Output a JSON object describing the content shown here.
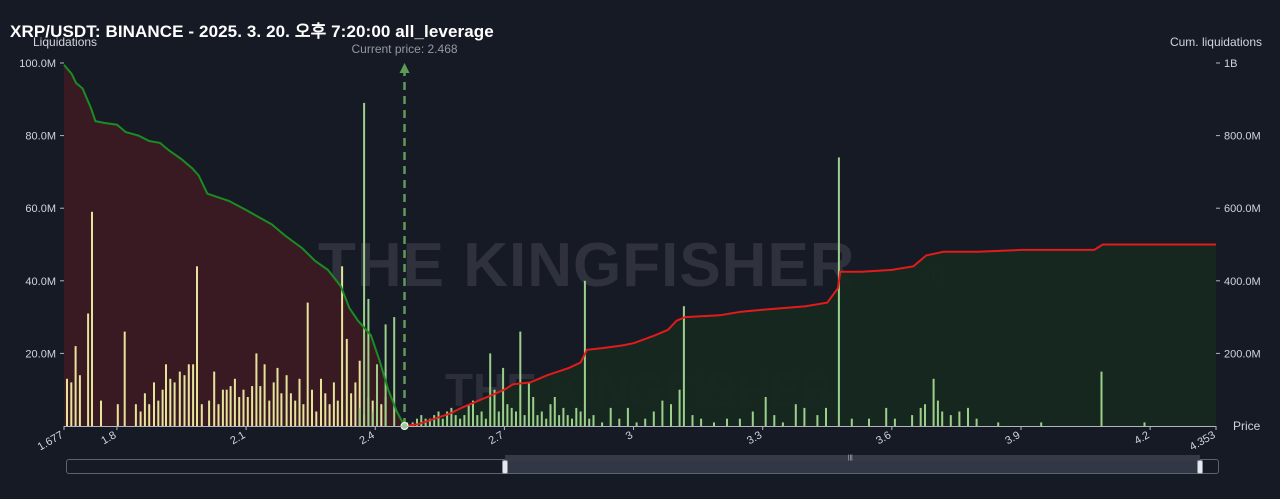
{
  "title": "XRP/USDT: BINANCE - 2025. 3. 20. 오후 7:20:00 all_leverage",
  "colors": {
    "background": "#161a25",
    "grid": "#2a2e39",
    "long_bars": "#e6e39a",
    "short_bars": "#9ccf8a",
    "cum_left_line": "#1b8c22",
    "cum_left_fill": "#3b1a22",
    "cum_right_line": "#e21b1b",
    "cum_right_fill": "#16281f",
    "current_price_line": "#5e9a58",
    "watermark": "#2f323c"
  },
  "watermark": {
    "main_text": "THE KINGFISHER",
    "suffix": ".io"
  },
  "chart_data": {
    "type": "bar",
    "title": "XRP/USDT: BINANCE - 2025. 3. 20. 오후 7:20:00 all_leverage",
    "xlabel": "Price",
    "ylabel": "Liquidations",
    "y2label": "Cum. liquidations",
    "current_price_label": "Current price: 2.468",
    "current_price": 2.468,
    "xlim": [
      1.677,
      4.353
    ],
    "ylim": [
      0,
      100
    ],
    "y2lim": [
      0,
      1000
    ],
    "x_ticks": [
      {
        "value": 1.677,
        "label": "1.677"
      },
      {
        "value": 1.8,
        "label": "1.8"
      },
      {
        "value": 2.1,
        "label": "2.1"
      },
      {
        "value": 2.4,
        "label": "2.4"
      },
      {
        "value": 2.7,
        "label": "2.7"
      },
      {
        "value": 3.0,
        "label": "3"
      },
      {
        "value": 3.3,
        "label": "3.3"
      },
      {
        "value": 3.6,
        "label": "3.6"
      },
      {
        "value": 3.9,
        "label": "3.9"
      },
      {
        "value": 4.2,
        "label": "4.2"
      },
      {
        "value": 4.353,
        "label": "4.353"
      }
    ],
    "y_ticks": [
      {
        "value": 20,
        "label": "20.0M"
      },
      {
        "value": 40,
        "label": "40.0M"
      },
      {
        "value": 60,
        "label": "60.0M"
      },
      {
        "value": 80,
        "label": "80.0M"
      },
      {
        "value": 100,
        "label": "100.0M"
      }
    ],
    "y2_ticks": [
      {
        "value": 200,
        "label": "200.0M"
      },
      {
        "value": 400,
        "label": "400.0M"
      },
      {
        "value": 600,
        "label": "600.0M"
      },
      {
        "value": 800,
        "label": "800.0M"
      },
      {
        "value": 1000,
        "label": "1B"
      }
    ],
    "series": [
      {
        "type": "bar",
        "side": "long",
        "points": [
          [
            1.684,
            13
          ],
          [
            1.694,
            12
          ],
          [
            1.704,
            22
          ],
          [
            1.714,
            14
          ],
          [
            1.733,
            31
          ],
          [
            1.742,
            59
          ],
          [
            1.763,
            7
          ],
          [
            1.802,
            6
          ],
          [
            1.818,
            26
          ],
          [
            1.844,
            6
          ],
          [
            1.855,
            4
          ],
          [
            1.865,
            9
          ],
          [
            1.875,
            6
          ],
          [
            1.886,
            12
          ],
          [
            1.896,
            7
          ],
          [
            1.906,
            10
          ],
          [
            1.914,
            17
          ],
          [
            1.924,
            13
          ],
          [
            1.934,
            12
          ],
          [
            1.946,
            15
          ],
          [
            1.957,
            14
          ],
          [
            1.967,
            17
          ],
          [
            1.977,
            17
          ],
          [
            1.986,
            44
          ],
          [
            1.997,
            6
          ],
          [
            2.014,
            7
          ],
          [
            2.026,
            15
          ],
          [
            2.036,
            6
          ],
          [
            2.046,
            10
          ],
          [
            2.055,
            10
          ],
          [
            2.064,
            11
          ],
          [
            2.074,
            13
          ],
          [
            2.084,
            8
          ],
          [
            2.094,
            10
          ],
          [
            2.104,
            8
          ],
          [
            2.114,
            11
          ],
          [
            2.124,
            20
          ],
          [
            2.133,
            11
          ],
          [
            2.143,
            17
          ],
          [
            2.154,
            7
          ],
          [
            2.164,
            12
          ],
          [
            2.173,
            16
          ],
          [
            2.182,
            9
          ],
          [
            2.194,
            14
          ],
          [
            2.204,
            9
          ],
          [
            2.214,
            7
          ],
          [
            2.224,
            13
          ],
          [
            2.233,
            6
          ],
          [
            2.243,
            34
          ],
          [
            2.253,
            10
          ],
          [
            2.263,
            4
          ],
          [
            2.274,
            13
          ],
          [
            2.284,
            9
          ],
          [
            2.294,
            6
          ],
          [
            2.304,
            12
          ],
          [
            2.313,
            7
          ],
          [
            2.323,
            44
          ],
          [
            2.334,
            24
          ],
          [
            2.344,
            9
          ],
          [
            2.354,
            12
          ],
          [
            2.364,
            18
          ],
          [
            2.374,
            3
          ],
          [
            2.384,
            8
          ],
          [
            2.394,
            7
          ],
          [
            2.404,
            9
          ],
          [
            2.414,
            6
          ],
          [
            2.424,
            8
          ]
        ]
      },
      {
        "type": "bar",
        "side": "short",
        "points": [
          [
            2.364,
            5
          ],
          [
            2.374,
            89
          ],
          [
            2.384,
            35
          ],
          [
            2.394,
            4
          ],
          [
            2.404,
            17
          ],
          [
            2.424,
            28
          ],
          [
            2.444,
            30
          ],
          [
            2.474,
            1
          ],
          [
            2.487,
            1
          ],
          [
            2.497,
            2
          ],
          [
            2.507,
            3
          ],
          [
            2.517,
            2
          ],
          [
            2.527,
            2
          ],
          [
            2.537,
            3
          ],
          [
            2.547,
            4
          ],
          [
            2.557,
            2
          ],
          [
            2.567,
            4
          ],
          [
            2.577,
            5
          ],
          [
            2.587,
            3
          ],
          [
            2.597,
            2
          ],
          [
            2.607,
            3
          ],
          [
            2.617,
            6
          ],
          [
            2.627,
            7
          ],
          [
            2.637,
            3
          ],
          [
            2.647,
            4
          ],
          [
            2.657,
            2
          ],
          [
            2.667,
            20
          ],
          [
            2.677,
            10
          ],
          [
            2.687,
            4
          ],
          [
            2.697,
            16
          ],
          [
            2.707,
            6
          ],
          [
            2.717,
            5
          ],
          [
            2.727,
            4
          ],
          [
            2.737,
            26
          ],
          [
            2.747,
            3
          ],
          [
            2.757,
            12
          ],
          [
            2.767,
            8
          ],
          [
            2.777,
            3
          ],
          [
            2.787,
            4
          ],
          [
            2.797,
            2
          ],
          [
            2.807,
            6
          ],
          [
            2.817,
            8
          ],
          [
            2.827,
            3
          ],
          [
            2.837,
            5
          ],
          [
            2.847,
            3
          ],
          [
            2.857,
            2
          ],
          [
            2.867,
            5
          ],
          [
            2.877,
            4
          ],
          [
            2.887,
            40
          ],
          [
            2.897,
            2
          ],
          [
            2.907,
            3
          ],
          [
            2.927,
            1
          ],
          [
            2.947,
            5
          ],
          [
            2.967,
            2
          ],
          [
            2.987,
            5
          ],
          [
            3.007,
            1
          ],
          [
            3.027,
            2
          ],
          [
            3.047,
            4
          ],
          [
            3.067,
            7
          ],
          [
            3.087,
            6
          ],
          [
            3.107,
            10
          ],
          [
            3.117,
            33
          ],
          [
            3.137,
            3
          ],
          [
            3.157,
            2
          ],
          [
            3.187,
            1
          ],
          [
            3.217,
            2
          ],
          [
            3.247,
            2
          ],
          [
            3.277,
            4
          ],
          [
            3.307,
            8
          ],
          [
            3.327,
            3
          ],
          [
            3.347,
            1
          ],
          [
            3.377,
            6
          ],
          [
            3.397,
            5
          ],
          [
            3.427,
            3
          ],
          [
            3.447,
            5
          ],
          [
            3.477,
            74
          ],
          [
            3.507,
            2
          ],
          [
            3.547,
            2
          ],
          [
            3.587,
            5
          ],
          [
            3.607,
            2
          ],
          [
            3.647,
            3
          ],
          [
            3.667,
            5
          ],
          [
            3.677,
            6
          ],
          [
            3.697,
            13
          ],
          [
            3.707,
            7
          ],
          [
            3.717,
            4
          ],
          [
            3.737,
            3
          ],
          [
            3.757,
            4
          ],
          [
            3.777,
            5
          ],
          [
            3.797,
            2
          ],
          [
            3.847,
            1
          ],
          [
            3.947,
            1
          ],
          [
            4.087,
            15
          ],
          [
            4.187,
            1
          ]
        ]
      },
      {
        "type": "line",
        "side": "cum_long",
        "axis": "y2",
        "points": [
          [
            1.677,
            995
          ],
          [
            1.695,
            970
          ],
          [
            1.705,
            945
          ],
          [
            1.72,
            930
          ],
          [
            1.74,
            875
          ],
          [
            1.75,
            840
          ],
          [
            1.77,
            835
          ],
          [
            1.8,
            830
          ],
          [
            1.82,
            810
          ],
          [
            1.85,
            800
          ],
          [
            1.875,
            785
          ],
          [
            1.9,
            780
          ],
          [
            1.92,
            760
          ],
          [
            1.95,
            735
          ],
          [
            1.975,
            710
          ],
          [
            1.99,
            690
          ],
          [
            2.01,
            640
          ],
          [
            2.06,
            620
          ],
          [
            2.1,
            595
          ],
          [
            2.13,
            575
          ],
          [
            2.16,
            555
          ],
          [
            2.19,
            525
          ],
          [
            2.23,
            490
          ],
          [
            2.26,
            455
          ],
          [
            2.29,
            430
          ],
          [
            2.32,
            385
          ],
          [
            2.34,
            325
          ],
          [
            2.36,
            290
          ],
          [
            2.39,
            250
          ],
          [
            2.41,
            180
          ],
          [
            2.43,
            100
          ],
          [
            2.45,
            40
          ],
          [
            2.468,
            0
          ]
        ]
      },
      {
        "type": "line",
        "side": "cum_short",
        "axis": "y2",
        "points": [
          [
            2.468,
            0
          ],
          [
            2.5,
            5
          ],
          [
            2.55,
            25
          ],
          [
            2.575,
            35
          ],
          [
            2.6,
            50
          ],
          [
            2.63,
            65
          ],
          [
            2.66,
            80
          ],
          [
            2.7,
            100
          ],
          [
            2.72,
            115
          ],
          [
            2.76,
            120
          ],
          [
            2.8,
            140
          ],
          [
            2.85,
            160
          ],
          [
            2.877,
            175
          ],
          [
            2.892,
            210
          ],
          [
            2.93,
            215
          ],
          [
            2.975,
            222
          ],
          [
            3.0,
            228
          ],
          [
            3.05,
            250
          ],
          [
            3.08,
            265
          ],
          [
            3.1,
            290
          ],
          [
            3.12,
            300
          ],
          [
            3.2,
            305
          ],
          [
            3.25,
            315
          ],
          [
            3.3,
            320
          ],
          [
            3.35,
            325
          ],
          [
            3.4,
            330
          ],
          [
            3.45,
            340
          ],
          [
            3.475,
            380
          ],
          [
            3.48,
            425
          ],
          [
            3.53,
            425
          ],
          [
            3.6,
            430
          ],
          [
            3.65,
            440
          ],
          [
            3.68,
            470
          ],
          [
            3.72,
            480
          ],
          [
            3.8,
            480
          ],
          [
            3.9,
            485
          ],
          [
            4.0,
            485
          ],
          [
            4.07,
            485
          ],
          [
            4.09,
            500
          ],
          [
            4.2,
            500
          ],
          [
            4.353,
            500
          ]
        ]
      }
    ]
  }
}
